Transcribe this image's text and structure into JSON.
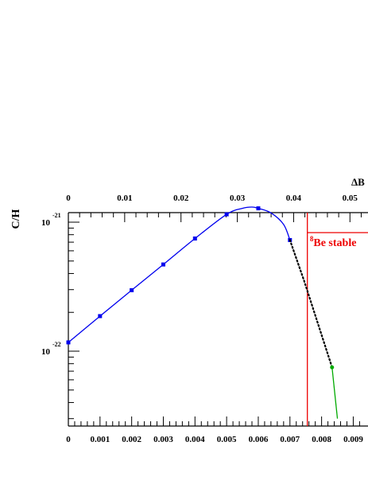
{
  "chart_data": {
    "type": "line",
    "ylabel": "C/H",
    "top_axis_label": "ΔB",
    "y_scale": "log",
    "ylim": [
      3e-23,
      1.6e-21
    ],
    "bottom_xlim": [
      0,
      0.00925
    ],
    "top_xlim": [
      0,
      0.0525
    ],
    "bottom_ticks": [
      "0",
      "0.001",
      "0.002",
      "0.003",
      "0.004",
      "0.005",
      "0.006",
      "0.007",
      "0.008",
      "0.009"
    ],
    "top_ticks": [
      "0",
      "0.01",
      "0.02",
      "0.03",
      "0.04",
      "0.05"
    ],
    "y_ticks": [
      {
        "value": 1e-21,
        "base": "10",
        "exponent": "-21"
      },
      {
        "value": 1e-22,
        "base": "10",
        "exponent": "-22"
      }
    ],
    "grid": false,
    "series": [
      {
        "color": "#0000ee",
        "style": "solid",
        "marker": "square",
        "points": [
          [
            0.0,
            1.17e-22
          ],
          [
            0.001,
            1.87e-22
          ],
          [
            0.002,
            2.97e-22
          ],
          [
            0.003,
            4.7e-22
          ],
          [
            0.004,
            7.47e-22
          ],
          [
            0.005,
            1.15e-21
          ],
          [
            0.006,
            1.28e-21
          ],
          [
            0.007,
            7.27e-22
          ]
        ],
        "curve": [
          [
            0.0,
            1.17e-22
          ],
          [
            0.001,
            1.87e-22
          ],
          [
            0.002,
            2.97e-22
          ],
          [
            0.003,
            4.7e-22
          ],
          [
            0.004,
            7.47e-22
          ],
          [
            0.005,
            1.15e-21
          ],
          [
            0.0055,
            1.28e-21
          ],
          [
            0.0058,
            1.31e-21
          ],
          [
            0.006,
            1.28e-21
          ],
          [
            0.0064,
            1.18e-21
          ],
          [
            0.0068,
            9.6e-22
          ],
          [
            0.007,
            7.27e-22
          ]
        ]
      },
      {
        "color": "#000000",
        "style": "dotted",
        "points": [
          [
            0.007,
            7.27e-22
          ],
          [
            0.00745,
            3.5e-22
          ],
          [
            0.00833,
            7.5e-23
          ]
        ]
      },
      {
        "color": "#00aa00",
        "style": "solid",
        "marker": "circle",
        "points": [
          [
            0.00833,
            7.5e-23
          ],
          [
            0.0085,
            3e-23
          ]
        ]
      }
    ],
    "annotations": [
      {
        "type": "vline",
        "x": 0.00755,
        "color": "#ee0000"
      },
      {
        "type": "hline",
        "x_from": 0.00755,
        "y": 8.3e-22,
        "color": "#ee0000"
      },
      {
        "type": "text",
        "sup": "8",
        "text": "Be stable",
        "x": 0.00763,
        "y": 1e-21,
        "color": "#ee0000"
      }
    ]
  }
}
